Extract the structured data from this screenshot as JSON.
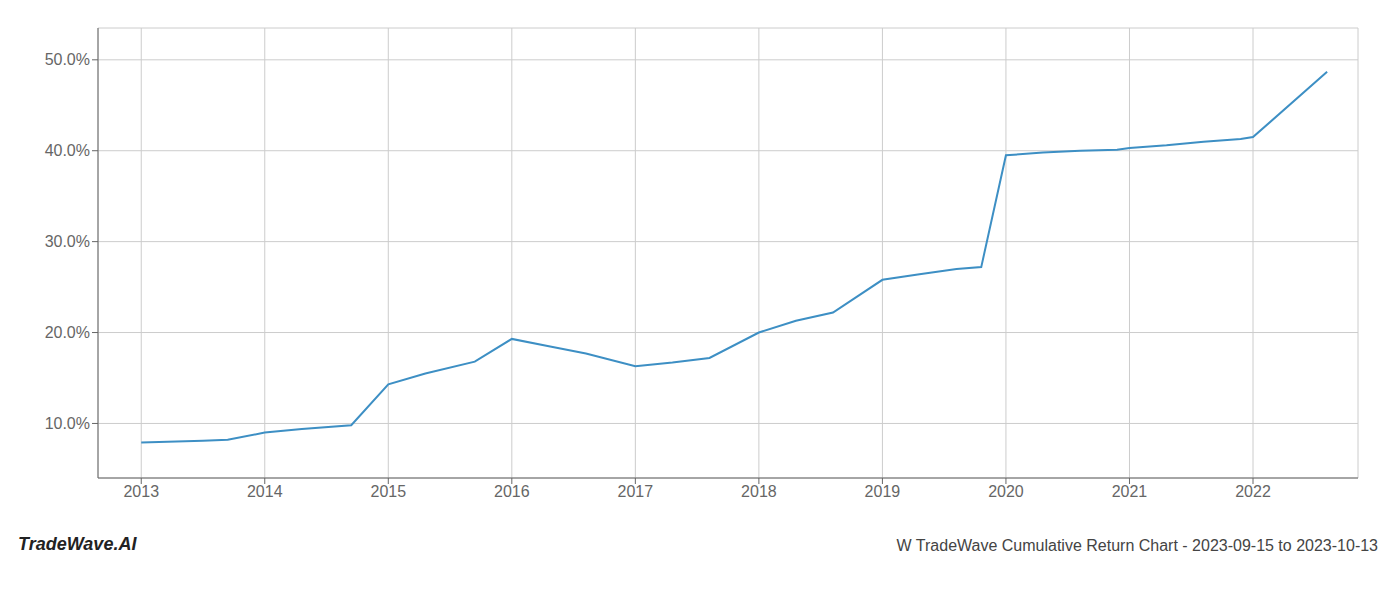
{
  "chart_data": {
    "type": "line",
    "title": "W TradeWave Cumulative Return Chart - 2023-09-15 to 2023-10-13",
    "annotations": [
      "TradeWave.AI"
    ],
    "x": [
      2013.0,
      2013.5,
      2013.7,
      2014.0,
      2014.3,
      2014.7,
      2015.0,
      2015.3,
      2015.7,
      2016.0,
      2016.3,
      2016.6,
      2017.0,
      2017.3,
      2017.6,
      2018.0,
      2018.3,
      2018.6,
      2019.0,
      2019.3,
      2019.6,
      2019.8,
      2020.0,
      2020.3,
      2020.6,
      2020.9,
      2021.0,
      2021.3,
      2021.6,
      2021.9,
      2022.0,
      2022.6
    ],
    "values": [
      0.079,
      0.081,
      0.082,
      0.09,
      0.094,
      0.098,
      0.143,
      0.155,
      0.168,
      0.193,
      0.185,
      0.177,
      0.163,
      0.167,
      0.172,
      0.2,
      0.213,
      0.222,
      0.258,
      0.264,
      0.27,
      0.272,
      0.395,
      0.398,
      0.4,
      0.401,
      0.403,
      0.406,
      0.41,
      0.413,
      0.415,
      0.487
    ],
    "color": "#3d8fc4",
    "xlim": [
      2012.65,
      2022.85
    ],
    "xticks": [
      2013,
      2014,
      2015,
      2016,
      2017,
      2018,
      2019,
      2020,
      2021,
      2022
    ],
    "ylim": [
      0.04,
      0.535
    ],
    "yticks": [
      {
        "value": 0.1,
        "label": "10.0%"
      },
      {
        "value": 0.2,
        "label": "20.0%"
      },
      {
        "value": 0.3,
        "label": "30.0%"
      },
      {
        "value": 0.4,
        "label": "40.0%"
      },
      {
        "value": 0.5,
        "label": "50.0%"
      }
    ],
    "grid": true
  }
}
